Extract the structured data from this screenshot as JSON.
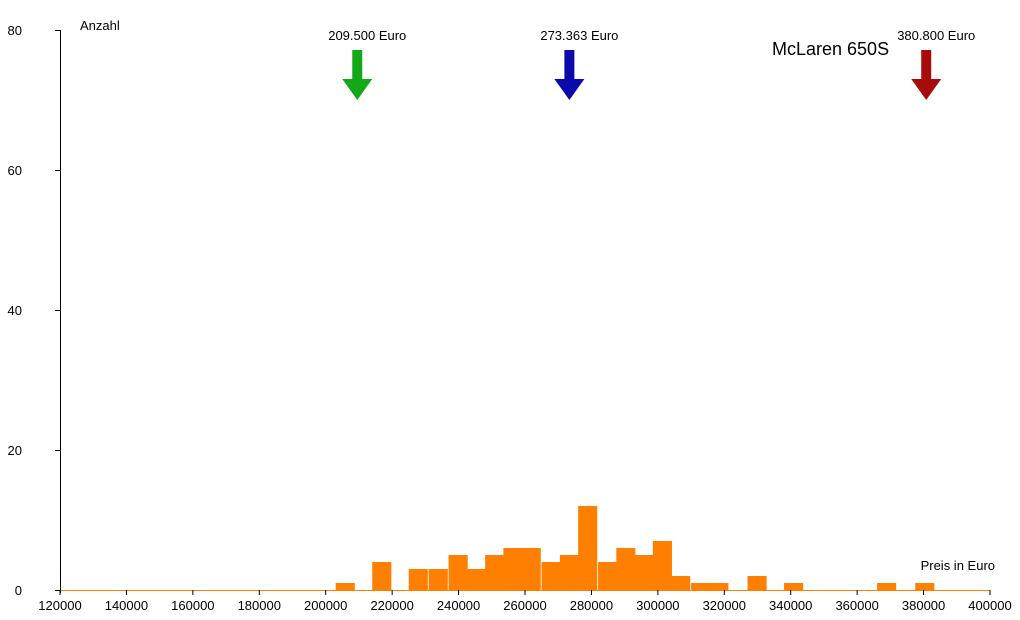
{
  "chart_data": {
    "type": "bar",
    "title": "McLaren 650S",
    "xlabel": "Preis in Euro",
    "ylabel": "Anzahl",
    "xlim": [
      120000,
      400000
    ],
    "ylim": [
      0,
      80
    ],
    "x_ticks": [
      "120000",
      "140000",
      "160000",
      "180000",
      "200000",
      "220000",
      "240000",
      "260000",
      "280000",
      "300000",
      "320000",
      "340000",
      "360000",
      "380000",
      "400000"
    ],
    "y_ticks": [
      "0",
      "20",
      "40",
      "60",
      "80"
    ],
    "bin_width": 5600,
    "bars": [
      {
        "x": 203000,
        "y": 1
      },
      {
        "x": 214000,
        "y": 4
      },
      {
        "x": 225000,
        "y": 3
      },
      {
        "x": 231000,
        "y": 3
      },
      {
        "x": 237000,
        "y": 5
      },
      {
        "x": 242500,
        "y": 3
      },
      {
        "x": 248000,
        "y": 5
      },
      {
        "x": 253500,
        "y": 6
      },
      {
        "x": 259000,
        "y": 6
      },
      {
        "x": 265000,
        "y": 4
      },
      {
        "x": 270500,
        "y": 5
      },
      {
        "x": 276000,
        "y": 12
      },
      {
        "x": 282000,
        "y": 4
      },
      {
        "x": 287500,
        "y": 6
      },
      {
        "x": 293000,
        "y": 5
      },
      {
        "x": 298500,
        "y": 7
      },
      {
        "x": 304000,
        "y": 2
      },
      {
        "x": 310000,
        "y": 1
      },
      {
        "x": 315500,
        "y": 1
      },
      {
        "x": 327000,
        "y": 2
      },
      {
        "x": 338000,
        "y": 1
      },
      {
        "x": 366000,
        "y": 1
      },
      {
        "x": 377500,
        "y": 1
      }
    ],
    "bar_color": "#ff8000",
    "markers": [
      {
        "value": 209500,
        "label": "209.500 Euro",
        "color": "#13a818"
      },
      {
        "value": 273363,
        "label": "273.363 Euro",
        "color": "#0a0aaa"
      },
      {
        "value": 380800,
        "label": "380.800 Euro",
        "color": "#a80b0b"
      }
    ]
  }
}
